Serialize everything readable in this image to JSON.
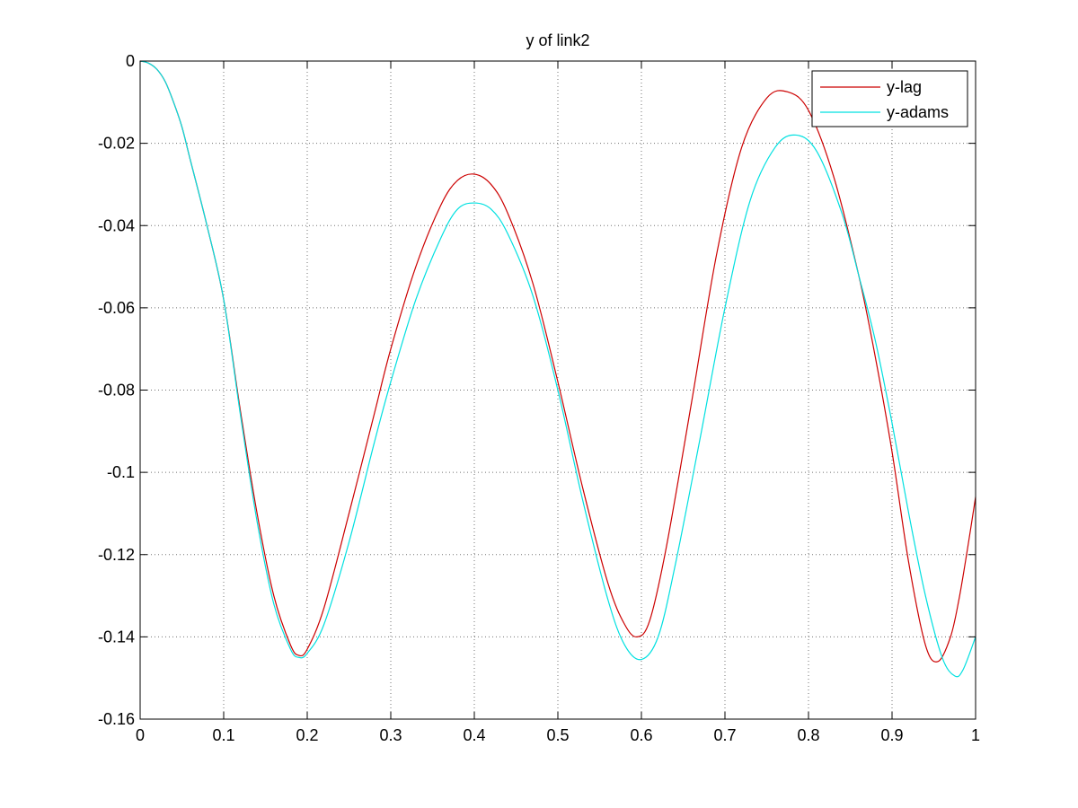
{
  "chart_data": {
    "type": "line",
    "title": "y of link2",
    "xlabel": "",
    "ylabel": "",
    "xlim": [
      0,
      1
    ],
    "ylim": [
      -0.16,
      0
    ],
    "grid": true,
    "legend_position": "top-right",
    "x_ticks": [
      0,
      0.1,
      0.2,
      0.3,
      0.4,
      0.5,
      0.6,
      0.7,
      0.8,
      0.9,
      1
    ],
    "x_tick_labels": [
      "0",
      "0.1",
      "0.2",
      "0.3",
      "0.4",
      "0.5",
      "0.6",
      "0.7",
      "0.8",
      "0.9",
      "1"
    ],
    "y_ticks": [
      0,
      -0.02,
      -0.04,
      -0.06,
      -0.08,
      -0.1,
      -0.12,
      -0.14,
      -0.16
    ],
    "y_tick_labels": [
      "0",
      "-0.02",
      "-0.04",
      "-0.06",
      "-0.08",
      "-0.1",
      "-0.12",
      "-0.14",
      "-0.16"
    ],
    "series": [
      {
        "name": "y-lag",
        "color": "#cc0000",
        "x": [
          0,
          0.01,
          0.02,
          0.03,
          0.04,
          0.05,
          0.06,
          0.08,
          0.1,
          0.12,
          0.14,
          0.16,
          0.18,
          0.19,
          0.2,
          0.22,
          0.25,
          0.28,
          0.3,
          0.33,
          0.36,
          0.38,
          0.4,
          0.42,
          0.44,
          0.47,
          0.5,
          0.53,
          0.56,
          0.58,
          0.595,
          0.61,
          0.63,
          0.66,
          0.69,
          0.72,
          0.75,
          0.775,
          0.8,
          0.83,
          0.86,
          0.88,
          0.9,
          0.92,
          0.94,
          0.955,
          0.97,
          0.98,
          0.99,
          1
        ],
        "values": [
          0,
          -0.0005,
          -0.002,
          -0.005,
          -0.01,
          -0.016,
          -0.024,
          -0.04,
          -0.058,
          -0.085,
          -0.11,
          -0.13,
          -0.142,
          -0.1445,
          -0.143,
          -0.133,
          -0.11,
          -0.086,
          -0.07,
          -0.05,
          -0.035,
          -0.029,
          -0.0275,
          -0.03,
          -0.037,
          -0.054,
          -0.078,
          -0.104,
          -0.127,
          -0.137,
          -0.14,
          -0.136,
          -0.118,
          -0.083,
          -0.047,
          -0.021,
          -0.009,
          -0.0075,
          -0.012,
          -0.028,
          -0.052,
          -0.072,
          -0.095,
          -0.122,
          -0.142,
          -0.146,
          -0.14,
          -0.131,
          -0.119,
          -0.106
        ]
      },
      {
        "name": "y-adams",
        "color": "#00e0e0",
        "x": [
          0,
          0.01,
          0.02,
          0.03,
          0.04,
          0.05,
          0.06,
          0.08,
          0.1,
          0.12,
          0.14,
          0.16,
          0.18,
          0.19,
          0.2,
          0.22,
          0.25,
          0.28,
          0.3,
          0.33,
          0.36,
          0.38,
          0.4,
          0.42,
          0.44,
          0.47,
          0.5,
          0.53,
          0.56,
          0.58,
          0.6,
          0.62,
          0.64,
          0.67,
          0.7,
          0.73,
          0.76,
          0.785,
          0.81,
          0.84,
          0.86,
          0.88,
          0.9,
          0.92,
          0.94,
          0.96,
          0.975,
          0.985,
          1
        ],
        "values": [
          0,
          -0.0005,
          -0.002,
          -0.005,
          -0.01,
          -0.016,
          -0.024,
          -0.04,
          -0.058,
          -0.086,
          -0.112,
          -0.132,
          -0.143,
          -0.145,
          -0.144,
          -0.137,
          -0.117,
          -0.093,
          -0.078,
          -0.058,
          -0.043,
          -0.036,
          -0.0345,
          -0.036,
          -0.042,
          -0.057,
          -0.08,
          -0.107,
          -0.131,
          -0.142,
          -0.1455,
          -0.14,
          -0.123,
          -0.092,
          -0.06,
          -0.034,
          -0.021,
          -0.018,
          -0.022,
          -0.037,
          -0.052,
          -0.068,
          -0.088,
          -0.11,
          -0.13,
          -0.145,
          -0.1495,
          -0.148,
          -0.14
        ]
      }
    ]
  }
}
